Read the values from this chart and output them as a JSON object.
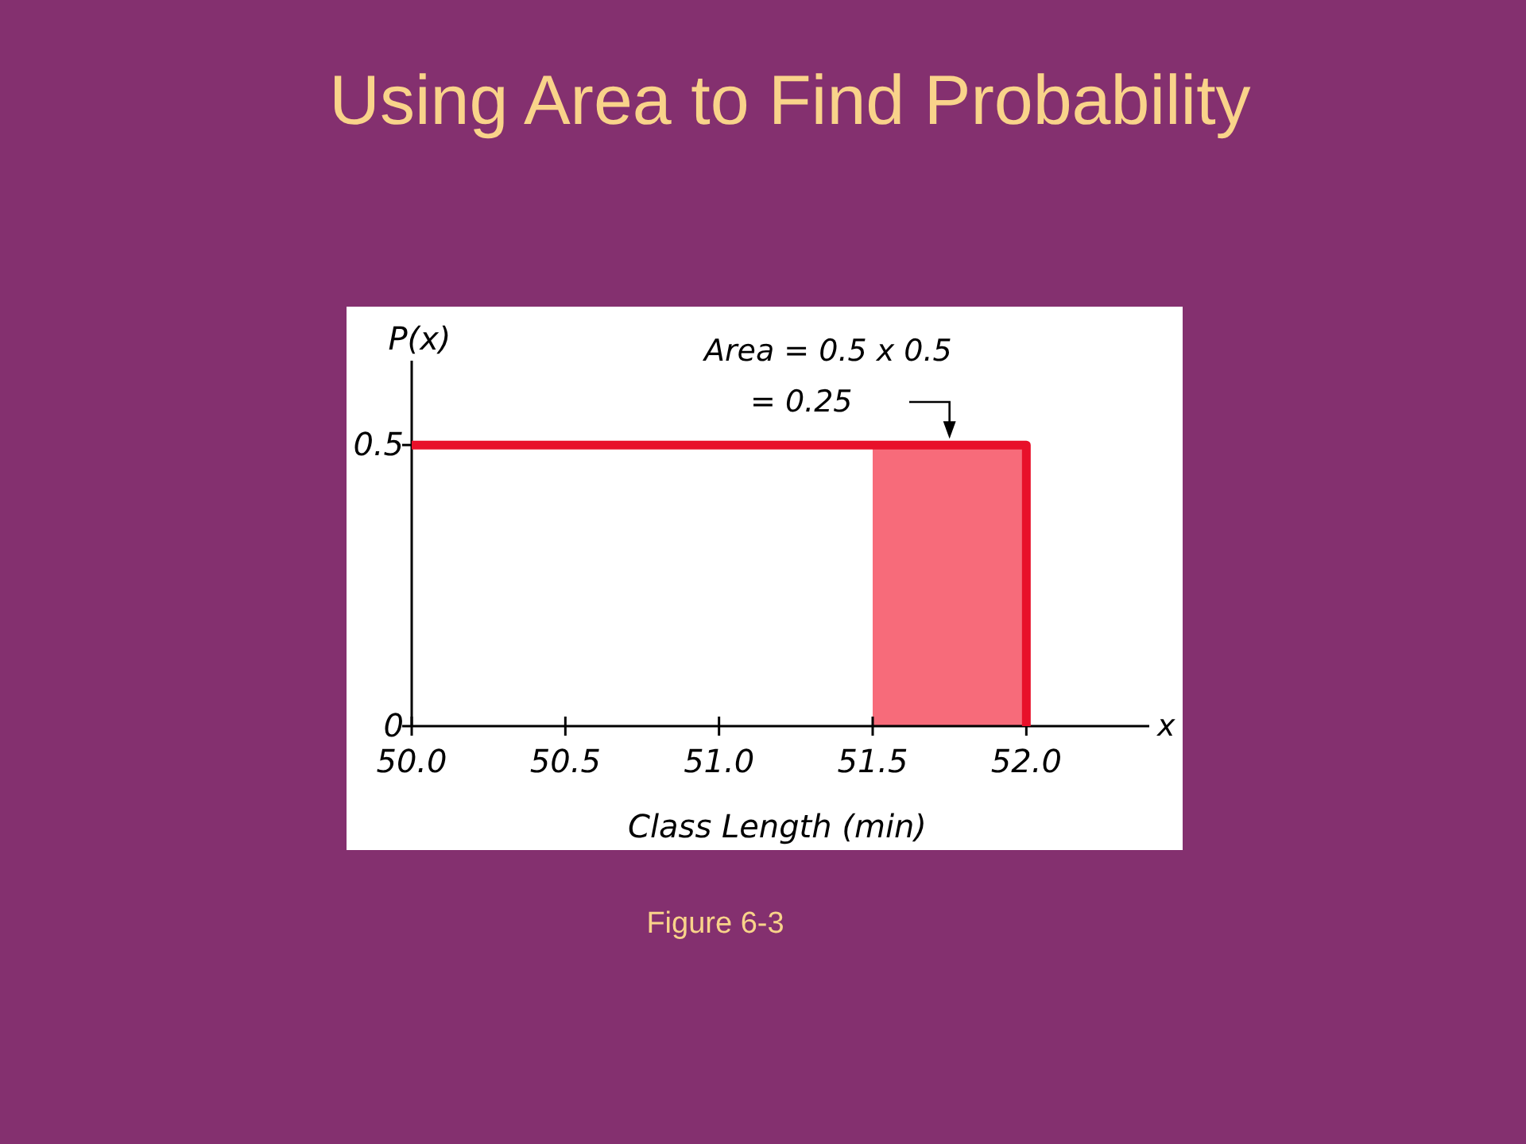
{
  "chart_data": {
    "type": "histogram",
    "title": "Using Area to Find Probability",
    "xlabel": "Class Length (min)",
    "ylabel": "P(x)",
    "bins": [
      50,
      52
    ],
    "values": [
      0.5
    ],
    "color": "#e8102a",
    "xlim": [
      50,
      52.4
    ],
    "xticks": [
      {
        "value": 50,
        "label": "50.0"
      },
      {
        "value": 50.5,
        "label": "50.5"
      },
      {
        "value": 51,
        "label": "51.0"
      },
      {
        "value": 51.5,
        "label": "51.5"
      },
      {
        "value": 52,
        "label": "52.0"
      }
    ],
    "ylim": [
      0,
      0.65
    ],
    "yticks": [
      0,
      0.5
    ],
    "bands": [
      {
        "axis": "x",
        "from": 51.5,
        "to": 52,
        "color": "#f76b7a"
      }
    ],
    "annotations": [
      "Area = 0.5 x 0.5",
      "= 0.25",
      "x",
      "Figure 6-3"
    ],
    "grid": false
  }
}
